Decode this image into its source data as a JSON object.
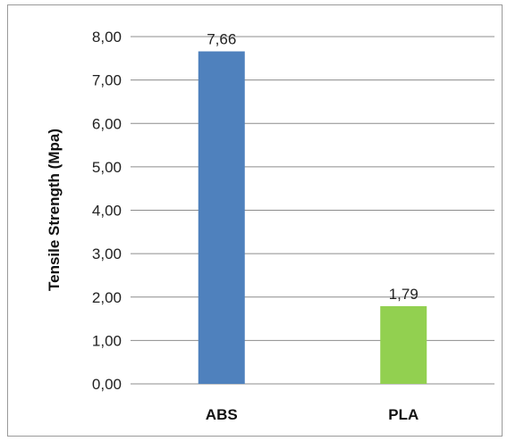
{
  "chart_data": {
    "type": "bar",
    "title": "",
    "xlabel": "",
    "ylabel": "Tensile Strength (Mpa)",
    "categories": [
      "ABS",
      "PLA"
    ],
    "values": [
      7.66,
      1.79
    ],
    "value_labels": [
      "7,66",
      "1,79"
    ],
    "ylim": [
      0,
      8
    ],
    "yticks": [
      0,
      1,
      2,
      3,
      4,
      5,
      6,
      7,
      8
    ],
    "ytick_labels": [
      "0,00",
      "1,00",
      "2,00",
      "3,00",
      "4,00",
      "5,00",
      "6,00",
      "7,00",
      "8,00"
    ],
    "colors": [
      "#4f81bd",
      "#92d050"
    ],
    "grid": true,
    "legend": "none"
  }
}
